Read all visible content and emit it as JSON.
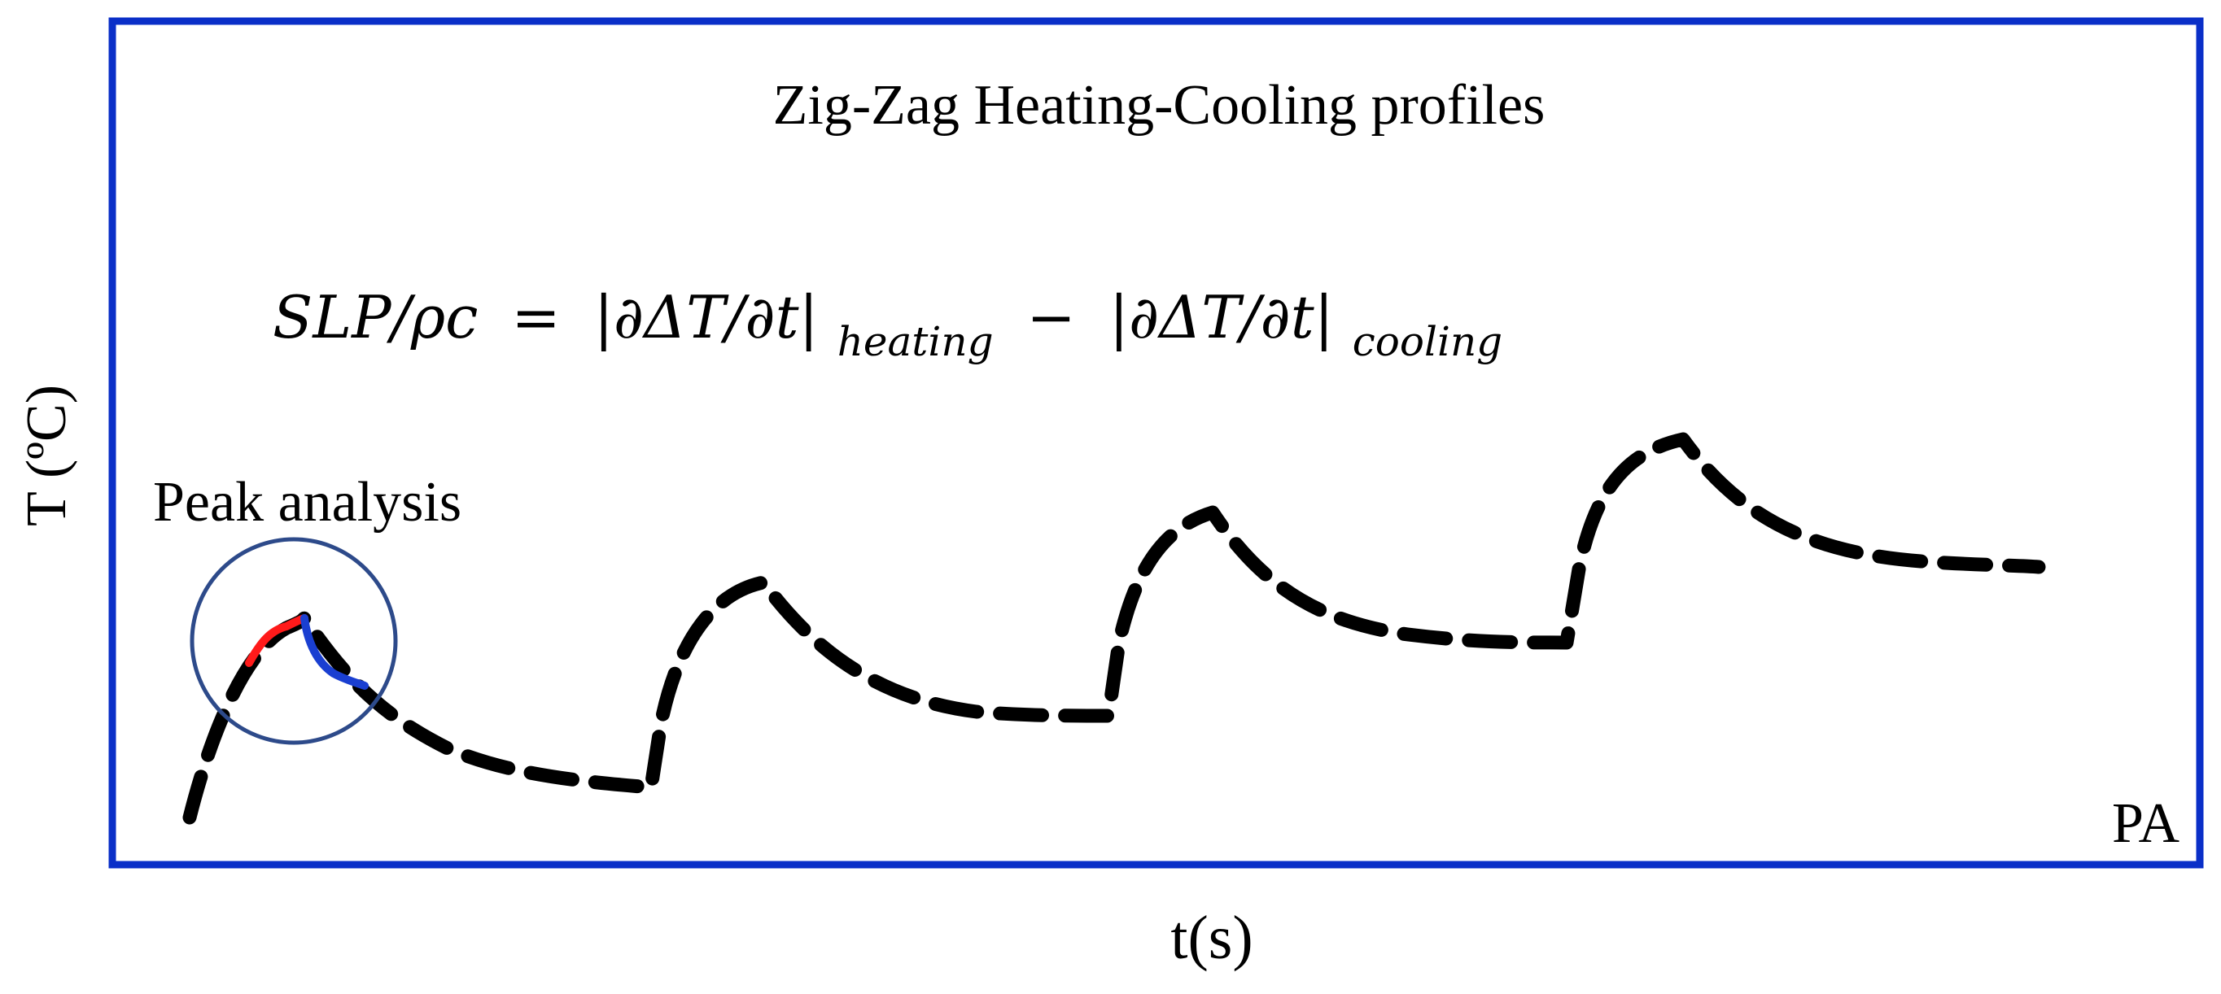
{
  "figure": {
    "title": "Zig-Zag Heating-Cooling profiles",
    "x_axis_label": "t(s)",
    "y_axis_label": "T (ºC)",
    "corner_label": "PA",
    "annotation_label": "Peak analysis",
    "equation": {
      "lhs": "SLP/ρc",
      "equals": "=",
      "term1": "|∂ΔT/∂t|",
      "sub1": "heating",
      "minus": "−",
      "term2": "|∂ΔT/∂t|",
      "sub2": "cooling"
    },
    "colors": {
      "frame": "#0a2fc8",
      "profile": "#000000",
      "heating_segment": "#ff1a1a",
      "cooling_segment": "#1a3fd1",
      "circle": "#2d4a8a"
    }
  }
}
